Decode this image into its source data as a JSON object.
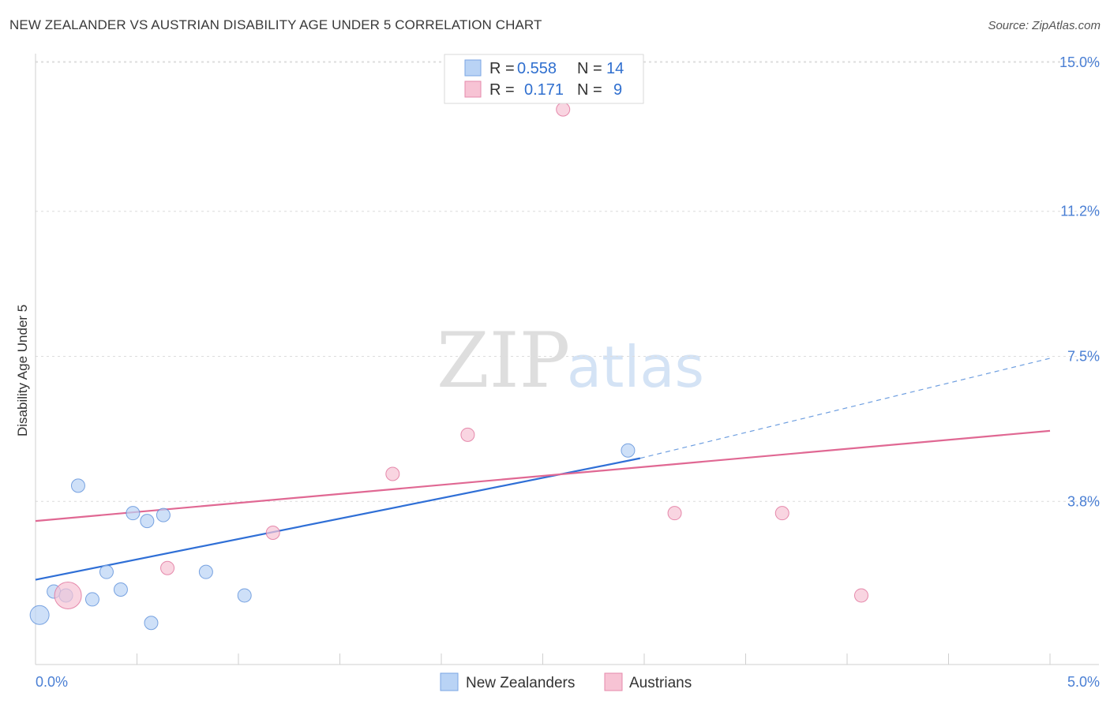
{
  "header": {
    "title": "NEW ZEALANDER VS AUSTRIAN DISABILITY AGE UNDER 5 CORRELATION CHART",
    "source": "Source: ZipAtlas.com"
  },
  "watermark": {
    "zip": "ZIP",
    "atlas": "atlas"
  },
  "legend": {
    "series1": {
      "r_label": "R =",
      "r_value": "0.558",
      "n_label": "N =",
      "n_value": "14",
      "color": "#9ec2f0"
    },
    "series2": {
      "r_label": "R =",
      "r_value": "0.171",
      "n_label": "N =",
      "n_value": "9",
      "color": "#f5b4c8"
    }
  },
  "bottom_legend": {
    "series1": "New Zealanders",
    "series2": "Austrians"
  },
  "chart_data": {
    "type": "scatter",
    "title": "NEW ZEALANDER VS AUSTRIAN DISABILITY AGE UNDER 5 CORRELATION CHART",
    "xlabel": "",
    "ylabel": "Disability Age Under 5",
    "xlim": [
      0,
      5.0
    ],
    "ylim": [
      0,
      15.0
    ],
    "x_ticks": [
      {
        "value": 0,
        "label": "0.0%"
      },
      {
        "value": 5.0,
        "label": "5.0%"
      }
    ],
    "y_ticks": [
      {
        "value": 3.8,
        "label": "3.8%"
      },
      {
        "value": 7.5,
        "label": "7.5%"
      },
      {
        "value": 11.2,
        "label": "11.2%"
      },
      {
        "value": 15.0,
        "label": "15.0%"
      }
    ],
    "grid": true,
    "legend_position": "top-center",
    "series": [
      {
        "name": "New Zealanders",
        "color": "#5b8fd9",
        "fill": "#b9d3f5",
        "points": [
          {
            "x": 0.02,
            "y": 0.9,
            "size": "large"
          },
          {
            "x": 0.09,
            "y": 1.5
          },
          {
            "x": 0.15,
            "y": 1.4
          },
          {
            "x": 0.28,
            "y": 1.3
          },
          {
            "x": 0.21,
            "y": 4.2
          },
          {
            "x": 0.35,
            "y": 2.0
          },
          {
            "x": 0.42,
            "y": 1.55
          },
          {
            "x": 0.48,
            "y": 3.5
          },
          {
            "x": 0.55,
            "y": 3.3
          },
          {
            "x": 0.57,
            "y": 0.7
          },
          {
            "x": 0.63,
            "y": 3.45
          },
          {
            "x": 0.84,
            "y": 2.0
          },
          {
            "x": 1.03,
            "y": 1.4
          },
          {
            "x": 2.92,
            "y": 5.1
          }
        ],
        "trend": {
          "x0": 0.0,
          "y0": 1.8,
          "x1": 2.98,
          "y1": 4.9,
          "x_dash_end": 5.0,
          "y_dash_end": 7.45
        }
      },
      {
        "name": "Austrians",
        "color": "#e0709a",
        "fill": "#f7c3d4",
        "points": [
          {
            "x": 0.16,
            "y": 1.4,
            "size": "large"
          },
          {
            "x": 0.65,
            "y": 2.1
          },
          {
            "x": 1.17,
            "y": 3.0
          },
          {
            "x": 1.76,
            "y": 4.5
          },
          {
            "x": 2.13,
            "y": 5.5
          },
          {
            "x": 2.6,
            "y": 13.8
          },
          {
            "x": 3.15,
            "y": 3.5
          },
          {
            "x": 3.68,
            "y": 3.5
          },
          {
            "x": 4.07,
            "y": 1.4
          }
        ],
        "trend": {
          "x0": 0.0,
          "y0": 3.3,
          "x1": 5.0,
          "y1": 5.6
        }
      }
    ]
  }
}
